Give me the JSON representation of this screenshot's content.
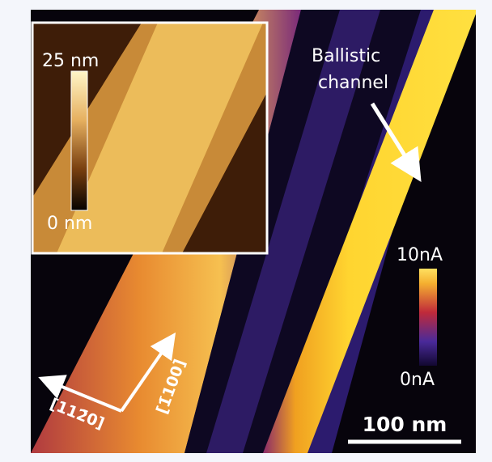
{
  "inset": {
    "colorbar_max": "25 nm",
    "colorbar_min": "0 nm"
  },
  "annotation": {
    "lines": [
      "Ballistic",
      "channel"
    ]
  },
  "colorbar": {
    "max": "10nA",
    "min": "0nA"
  },
  "directions": [
    "[112̄0]",
    "[1̄100]"
  ],
  "scale_bar": "100 nm"
}
